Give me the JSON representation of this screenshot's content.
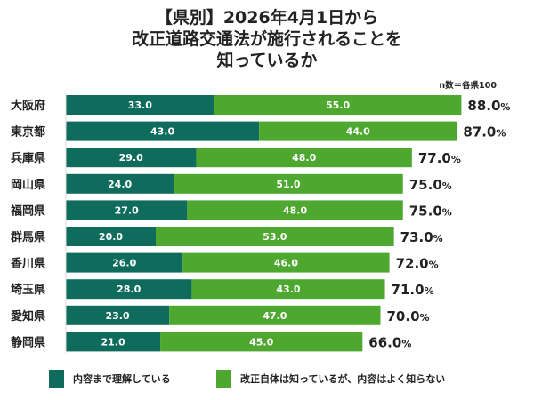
{
  "chart_data": {
    "type": "bar",
    "orientation": "horizontal",
    "stacked": true,
    "title_lines": [
      "【県別】2026年4月1日から",
      "改正道路交通法が施行されることを",
      "知っているか"
    ],
    "note": "n数＝各県100",
    "categories": [
      "大阪府",
      "東京都",
      "兵庫県",
      "岡山県",
      "福岡県",
      "群馬県",
      "香川県",
      "埼玉県",
      "愛知県",
      "静岡県"
    ],
    "series": [
      {
        "name": "内容まで理解している",
        "color": "#0f6b5c",
        "values": [
          33.0,
          43.0,
          29.0,
          24.0,
          27.0,
          20.0,
          26.0,
          28.0,
          23.0,
          21.0
        ]
      },
      {
        "name": "改正自体は知っているが、内容はよく知らない",
        "color": "#4ea72e",
        "values": [
          55.0,
          44.0,
          48.0,
          51.0,
          48.0,
          53.0,
          46.0,
          43.0,
          47.0,
          45.0
        ]
      }
    ],
    "totals": [
      88.0,
      87.0,
      77.0,
      75.0,
      75.0,
      73.0,
      72.0,
      71.0,
      70.0,
      66.0
    ],
    "total_unit": "%",
    "legend_position": "bottom",
    "grid": false
  }
}
